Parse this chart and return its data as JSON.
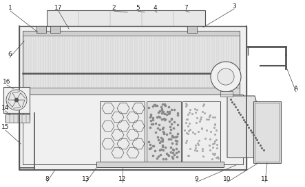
{
  "bg_color": "#ffffff",
  "lc": "#555555",
  "figsize": [
    4.43,
    2.73
  ],
  "dpi": 100
}
